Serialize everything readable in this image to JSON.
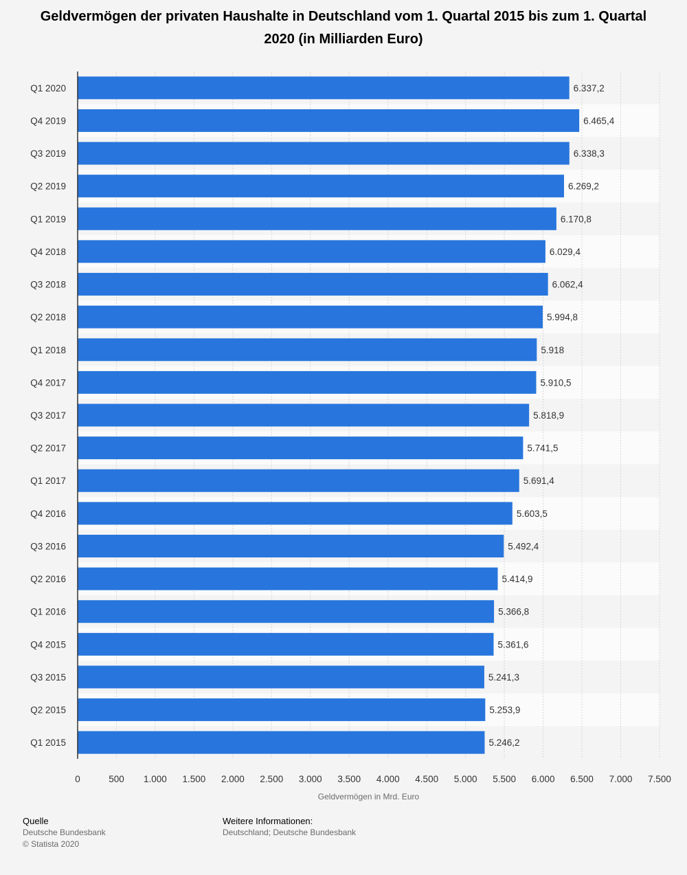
{
  "title": "Geldvermögen der privaten Haushalte in Deutschland vom 1. Quartal 2015 bis zum 1. Quartal 2020 (in Milliarden Euro)",
  "chart_data": {
    "type": "bar",
    "orientation": "horizontal",
    "categories": [
      "Q1 2020",
      "Q4 2019",
      "Q3 2019",
      "Q2 2019",
      "Q1 2019",
      "Q4 2018",
      "Q3 2018",
      "Q2 2018",
      "Q1 2018",
      "Q4 2017",
      "Q3 2017",
      "Q2 2017",
      "Q1 2017",
      "Q4 2016",
      "Q3 2016",
      "Q2 2016",
      "Q1 2016",
      "Q4 2015",
      "Q3 2015",
      "Q2 2015",
      "Q1 2015"
    ],
    "values": [
      6337.2,
      6465.4,
      6338.3,
      6269.2,
      6170.8,
      6029.4,
      6062.4,
      5994.8,
      5918,
      5910.5,
      5818.9,
      5741.5,
      5691.4,
      5603.5,
      5492.4,
      5414.9,
      5366.8,
      5361.6,
      5241.3,
      5253.9,
      5246.2
    ],
    "value_labels": [
      "6.337,2",
      "6.465,4",
      "6.338,3",
      "6.269,2",
      "6.170,8",
      "6.029,4",
      "6.062,4",
      "5.994,8",
      "5.918",
      "5.910,5",
      "5.818,9",
      "5.741,5",
      "5.691,4",
      "5.603,5",
      "5.492,4",
      "5.414,9",
      "5.366,8",
      "5.361,6",
      "5.241,3",
      "5.253,9",
      "5.246,2"
    ],
    "xlabel": "Geldvermögen in Mrd. Euro",
    "xlim": [
      0,
      7500
    ],
    "xticks": [
      0,
      500,
      1000,
      1500,
      2000,
      2500,
      3000,
      3500,
      4000,
      4500,
      5000,
      5500,
      6000,
      6500,
      7000,
      7500
    ],
    "xtick_labels": [
      "0",
      "500",
      "1.000",
      "1.500",
      "2.000",
      "2.500",
      "3.000",
      "3.500",
      "4.000",
      "4.500",
      "5.000",
      "5.500",
      "6.000",
      "6.500",
      "7.000",
      "7.500"
    ],
    "grid": true,
    "bar_color": "#2876dd"
  },
  "footer": {
    "source_heading": "Quelle",
    "source_line1": "Deutsche Bundesbank",
    "source_line2": "© Statista 2020",
    "info_heading": "Weitere Informationen:",
    "info_text": "Deutschland; Deutsche Bundesbank"
  }
}
